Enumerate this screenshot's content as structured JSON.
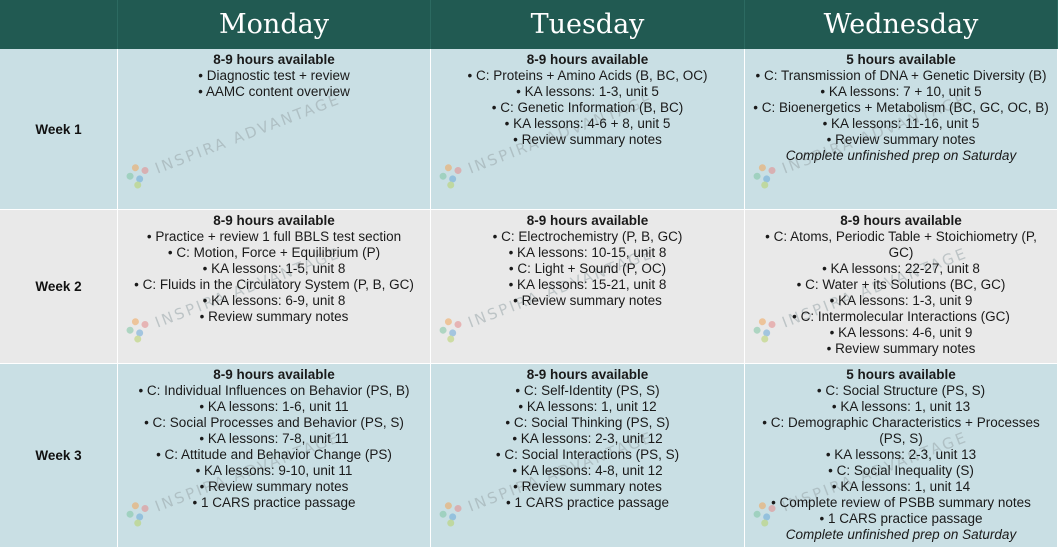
{
  "header": {
    "corner": "",
    "days": [
      "Monday",
      "Tuesday",
      "Wednesday"
    ]
  },
  "watermark": "INSPIRA ADVANTAGE",
  "colors": {
    "header_bg": "#215a52",
    "row_blue": "#c9dfe4",
    "row_gray": "#e9e9e9"
  },
  "weeks": [
    {
      "label": "Week 1",
      "days": [
        {
          "title": "8-9 hours available",
          "items": [
            "• Diagnostic test + review",
            "• AAMC content overview"
          ]
        },
        {
          "title": "8-9 hours available",
          "items": [
            "• C: Proteins + Amino Acids (B, BC, OC)",
            "• KA lessons: 1-3, unit 5",
            "• C: Genetic Information (B, BC)",
            "• KA lessons: 4-6 + 8, unit 5",
            "• Review summary notes"
          ]
        },
        {
          "title": "5 hours available",
          "items": [
            "• C: Transmission of DNA + Genetic Diversity (B)",
            "• KA lessons: 7 + 10, unit 5",
            "• C: Bioenergetics + Metabolism (BC, GC, OC, B)",
            "• KA lessons: 11-16, unit 5",
            "• Review summary notes"
          ],
          "note": "Complete unfinished prep on Saturday"
        }
      ]
    },
    {
      "label": "Week 2",
      "days": [
        {
          "title": "8-9 hours available",
          "items": [
            "• Practice + review 1 full BBLS test section",
            "• C: Motion, Force + Equilibrium (P)",
            "• KA lessons: 1-5, unit 8",
            "• C: Fluids in the Circulatory System (P, B, GC)",
            "• KA lessons: 6-9, unit 8",
            "• Review summary notes"
          ]
        },
        {
          "title": "8-9 hours available",
          "items": [
            "• C: Electrochemistry (P, B, GC)",
            "• KA lessons: 10-15, unit 8",
            "• C: Light + Sound (P, OC)",
            "• KA lessons: 15-21, unit 8",
            "• Review summary notes"
          ]
        },
        {
          "title": "8-9 hours available",
          "items": [
            "• C: Atoms, Periodic Table + Stoichiometry (P, GC)",
            "• KA lessons: 22-27, unit 8",
            "• C: Water + its Solutions (BC, GC)",
            "• KA lessons: 1-3, unit 9",
            "• C: Intermolecular Interactions (GC)",
            "• KA lessons: 4-6, unit 9",
            "• Review summary notes"
          ]
        }
      ]
    },
    {
      "label": "Week 3",
      "days": [
        {
          "title": "8-9 hours available",
          "items": [
            "• C: Individual Influences on Behavior (PS, B)",
            "• KA lessons: 1-6, unit 11",
            "• C: Social Processes and Behavior (PS, S)",
            "• KA lessons: 7-8, unit 11",
            "• C: Attitude and Behavior Change (PS)",
            "• KA lessons: 9-10, unit 11",
            "• Review summary notes",
            "• 1 CARS practice passage"
          ]
        },
        {
          "title": "8-9 hours available",
          "items": [
            "• C: Self-Identity (PS, S)",
            "• KA lessons: 1, unit 12",
            "• C: Social Thinking (PS, S)",
            "• KA lessons: 2-3, unit 12",
            "• C: Social Interactions (PS, S)",
            "• KA lessons: 4-8, unit 12",
            "• Review summary notes",
            "• 1 CARS practice passage"
          ]
        },
        {
          "title": "5 hours available",
          "items": [
            "• C: Social Structure (PS, S)",
            "• KA lessons: 1, unit 13",
            "• C: Demographic Characteristics + Processes (PS, S)",
            "• KA lessons: 2-3, unit 13",
            "• C: Social Inequality (S)",
            "• KA lessons: 1, unit 14",
            "• Complete review of PSBB summary notes",
            "• 1 CARS practice passage"
          ],
          "note": "Complete unfinished prep on Saturday"
        }
      ]
    }
  ]
}
